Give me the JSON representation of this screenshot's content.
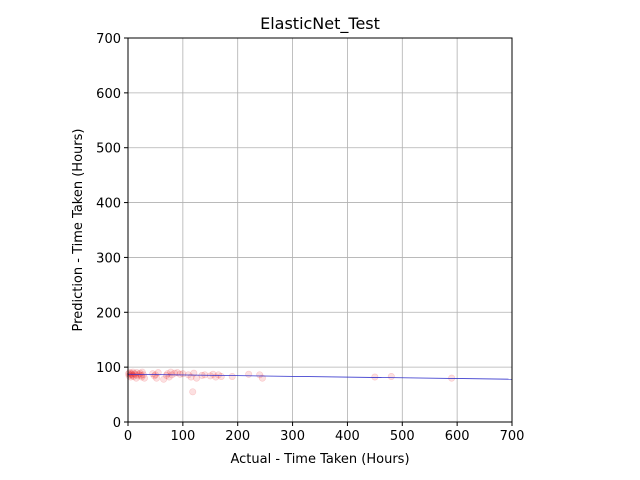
{
  "chart_data": {
    "type": "scatter",
    "title": "ElasticNet_Test",
    "xlabel": "Actual - Time Taken (Hours)",
    "ylabel": "Prediction - Time Taken (Hours)",
    "xlim": [
      0,
      700
    ],
    "ylim": [
      0,
      700
    ],
    "xticks": [
      0,
      100,
      200,
      300,
      400,
      500,
      600,
      700
    ],
    "yticks": [
      0,
      100,
      200,
      300,
      400,
      500,
      600,
      700
    ],
    "grid": true,
    "series": [
      {
        "kind": "scatter",
        "color": "#e8000b",
        "alpha": 0.12,
        "x": [
          1,
          2,
          3,
          4,
          5,
          6,
          7,
          8,
          9,
          10,
          12,
          14,
          15,
          16,
          18,
          20,
          22,
          24,
          25,
          26,
          28,
          30,
          45,
          48,
          50,
          52,
          55,
          65,
          70,
          72,
          75,
          78,
          80,
          85,
          90,
          95,
          100,
          110,
          115,
          118,
          120,
          125,
          135,
          140,
          150,
          155,
          160,
          165,
          170,
          190,
          220,
          240,
          245,
          450,
          480,
          590
        ],
        "y": [
          88,
          84,
          90,
          86,
          82,
          89,
          87,
          85,
          91,
          83,
          88,
          86,
          80,
          90,
          84,
          87,
          89,
          85,
          82,
          91,
          86,
          80,
          88,
          84,
          86,
          80,
          90,
          78,
          85,
          88,
          82,
          91,
          86,
          89,
          90,
          87,
          88,
          86,
          82,
          55,
          89,
          80,
          85,
          86,
          84,
          87,
          82,
          86,
          83,
          83,
          87,
          86,
          80,
          82,
          83,
          80
        ]
      },
      {
        "kind": "line",
        "color": "#3333cc",
        "x": [
          0,
          700
        ],
        "y": [
          87,
          78
        ]
      }
    ]
  }
}
